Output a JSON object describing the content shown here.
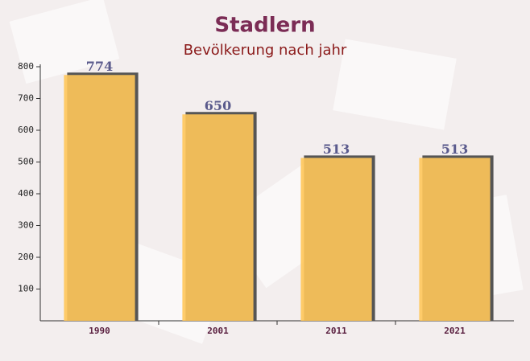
{
  "chart_data": {
    "type": "bar",
    "title": "Stadlern",
    "subtitle": "Bevölkerung nach jahr",
    "categories": [
      "1990",
      "2001",
      "2011",
      "2021"
    ],
    "values": [
      774,
      650,
      513,
      513
    ],
    "color": "#ffc65a",
    "ylim": [
      0,
      800
    ],
    "yticks": [
      100,
      200,
      300,
      400,
      500,
      600,
      700,
      800
    ]
  }
}
